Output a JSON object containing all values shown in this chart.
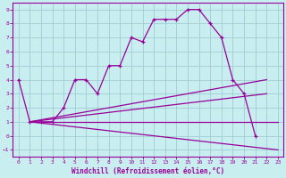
{
  "xlabel": "Windchill (Refroidissement éolien,°C)",
  "bg_color": "#c8eef0",
  "grid_color": "#a0ccd4",
  "line_color": "#990099",
  "xlim": [
    -0.5,
    23.5
  ],
  "ylim": [
    -1.5,
    9.5
  ],
  "xticks": [
    0,
    1,
    2,
    3,
    4,
    5,
    6,
    7,
    8,
    9,
    10,
    11,
    12,
    13,
    14,
    15,
    16,
    17,
    18,
    19,
    20,
    21,
    22,
    23
  ],
  "yticks": [
    -1,
    0,
    1,
    2,
    3,
    4,
    5,
    6,
    7,
    8,
    9
  ],
  "curve_x": [
    0,
    1,
    2,
    3,
    4,
    5,
    6,
    7,
    8,
    9,
    10,
    11,
    12,
    13,
    14,
    15,
    16,
    17,
    18,
    19,
    20,
    21
  ],
  "curve_y": [
    4,
    1,
    1,
    1,
    2,
    4,
    4,
    3,
    5,
    5,
    7,
    6.7,
    8.3,
    8.3,
    8.3,
    9,
    9,
    8,
    7,
    4,
    3,
    0
  ],
  "fan_lines": [
    {
      "x": [
        1,
        22
      ],
      "y": [
        1,
        4
      ]
    },
    {
      "x": [
        1,
        22
      ],
      "y": [
        1,
        3
      ]
    },
    {
      "x": [
        1,
        23
      ],
      "y": [
        1,
        1
      ]
    },
    {
      "x": [
        1,
        23
      ],
      "y": [
        1,
        -1
      ]
    }
  ]
}
